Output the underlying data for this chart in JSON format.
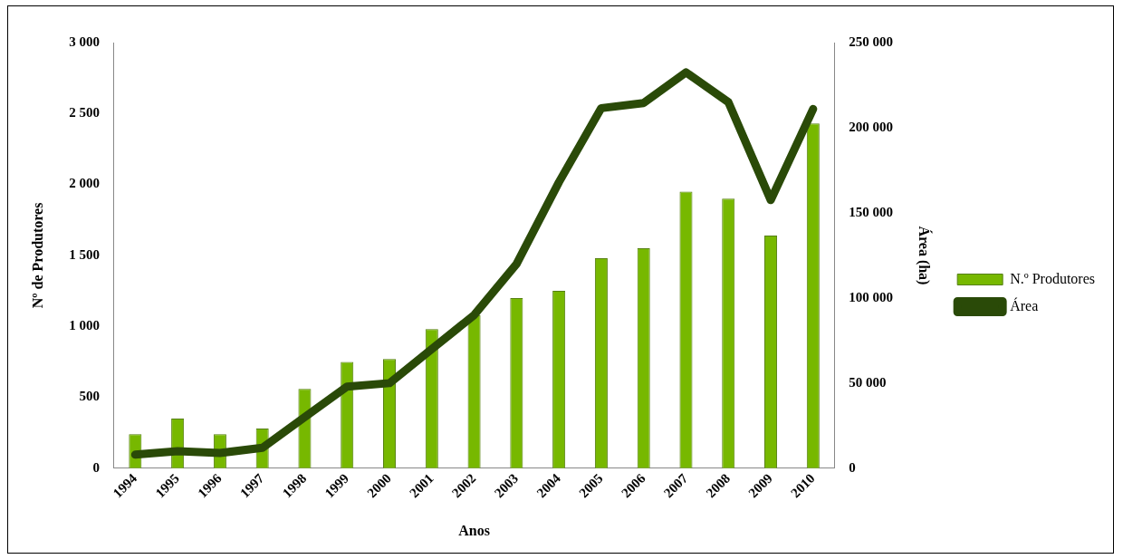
{
  "chart_data": {
    "type": "bar",
    "xlabel": "Anos",
    "ylabel": "Nº de Produtores",
    "y2label": "Área (ha)",
    "categories": [
      "1994",
      "1995",
      "1996",
      "1997",
      "1998",
      "1999",
      "2000",
      "2001",
      "2002",
      "2003",
      "2004",
      "2005",
      "2006",
      "2007",
      "2008",
      "2009",
      "2010"
    ],
    "series": [
      {
        "name": "N.º Produtores",
        "color": "#77b800",
        "values": [
          240,
          350,
          240,
          280,
          560,
          750,
          770,
          980,
          1080,
          1200,
          1250,
          1480,
          1550,
          1950,
          1900,
          1640,
          2430
        ]
      },
      {
        "name": "Área",
        "type": "line",
        "axis": "y2",
        "color": "#2a4a08",
        "values": [
          8000,
          10000,
          9000,
          12000,
          30000,
          48000,
          50000,
          70000,
          90000,
          120000,
          168000,
          211500,
          214500,
          232500,
          215000,
          157500,
          211000
        ]
      }
    ],
    "ylim": [
      0,
      3000
    ],
    "yticks": [
      0,
      500,
      {
        "value": 1000,
        "label": "1 000"
      },
      {
        "value": 1500,
        "label": "1 500"
      },
      {
        "value": 2000,
        "label": "2 000"
      },
      {
        "value": 2500,
        "label": "2 500"
      },
      {
        "value": 3000,
        "label": "3 000"
      }
    ],
    "y2lim": [
      0,
      250000
    ],
    "y2ticks": [
      0,
      {
        "value": 50000,
        "label": "50 000"
      },
      {
        "value": 100000,
        "label": "100 000"
      },
      {
        "value": 150000,
        "label": "150 000"
      },
      {
        "value": 200000,
        "label": "200 000"
      },
      {
        "value": 250000,
        "label": "250 000"
      }
    ],
    "grid": false,
    "legend": "right",
    "marker": "none",
    "line_style": "solid"
  }
}
